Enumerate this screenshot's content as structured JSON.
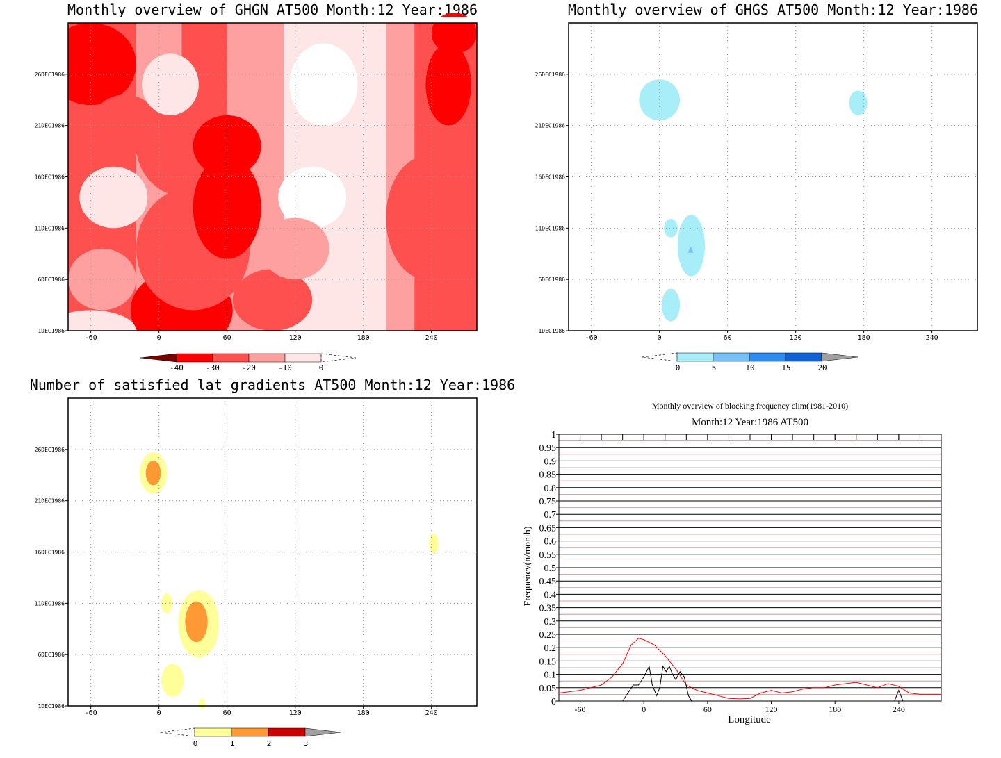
{
  "colors": {
    "ghgn": [
      "#7a0000",
      "#ff0000",
      "#ff5050",
      "#ffa0a0",
      "#ffe6e6"
    ],
    "ghgs": [
      "#a8eef8",
      "#78c0f4",
      "#2c8cf0",
      "#1060d8",
      "#a0a0a0"
    ],
    "grad": [
      "#ffff99",
      "#ff9933",
      "#cc0000",
      "#a0a0a0"
    ],
    "clim_line": "#ff0000",
    "obs_line": "#000000",
    "grid_dark": "#000000",
    "grid_light": "#cc8888"
  },
  "chart_data": [
    {
      "id": "ghgn",
      "type": "heatmap",
      "title": "Monthly overview of GHGN AT500 Month:12 Year:1986",
      "x_ticks": [
        "-60",
        "0",
        "60",
        "120",
        "180",
        "240"
      ],
      "y_ticks": [
        "1DEC1986",
        "6DEC1986",
        "11DEC1986",
        "16DEC1986",
        "21DEC1986",
        "26DEC1986"
      ],
      "xlim": [
        -80,
        280
      ],
      "ylim": [
        1,
        31
      ],
      "colorbar": [
        "-40",
        "-30",
        "-20",
        "-10",
        "0"
      ],
      "grid": true
    },
    {
      "id": "ghgs",
      "type": "heatmap",
      "title": "Monthly overview of GHGS AT500 Month:12 Year:1986",
      "x_ticks": [
        "-60",
        "0",
        "60",
        "120",
        "180",
        "240"
      ],
      "y_ticks": [
        "1DEC1986",
        "6DEC1986",
        "11DEC1986",
        "16DEC1986",
        "21DEC1986",
        "26DEC1986"
      ],
      "xlim": [
        -80,
        280
      ],
      "ylim": [
        1,
        31
      ],
      "colorbar": [
        "0",
        "5",
        "10",
        "15",
        "20"
      ],
      "grid": true,
      "blobs": [
        {
          "x": 0,
          "y": 23.5
        },
        {
          "x": 175,
          "y": 23.2
        },
        {
          "x": 10,
          "y": 11.0
        },
        {
          "x": 28,
          "y": 9.3
        },
        {
          "x": 10,
          "y": 3.5
        }
      ]
    },
    {
      "id": "grad",
      "type": "heatmap",
      "title": "Number of satisfied lat gradients AT500 Month:12 Year:1986",
      "x_ticks": [
        "-60",
        "0",
        "60",
        "120",
        "180",
        "240"
      ],
      "y_ticks": [
        "1DEC1986",
        "6DEC1986",
        "11DEC1986",
        "16DEC1986",
        "21DEC1986",
        "26DEC1986"
      ],
      "xlim": [
        -80,
        280
      ],
      "ylim": [
        1,
        31
      ],
      "colorbar": [
        "0",
        "1",
        "2",
        "3"
      ],
      "grid": true,
      "blobs": [
        {
          "x": -5,
          "y": 23.7,
          "level": 2
        },
        {
          "x": 35,
          "y": 9.0,
          "level": 2
        },
        {
          "x": 7,
          "y": 11.0,
          "level": 1
        },
        {
          "x": 12,
          "y": 3.5,
          "level": 1
        },
        {
          "x": 242,
          "y": 16.8,
          "level": 1
        },
        {
          "x": 38,
          "y": 1.2,
          "level": 1
        }
      ]
    },
    {
      "id": "freq",
      "type": "line",
      "title": "Monthly overview of blocking frequency clim(1981-2010)",
      "subtitle": "Month:12 Year:1986  AT500",
      "xlabel": "Longitude",
      "ylabel": "Frequency(n/month)",
      "xlim": [
        -80,
        280
      ],
      "ylim": [
        0,
        1
      ],
      "x_ticks": [
        "-60",
        "0",
        "60",
        "120",
        "180",
        "240"
      ],
      "y_ticks": [
        "0",
        "0.05",
        "0.1",
        "0.15",
        "0.2",
        "0.25",
        "0.3",
        "0.35",
        "0.4",
        "0.45",
        "0.5",
        "0.55",
        "0.6",
        "0.65",
        "0.7",
        "0.75",
        "0.8",
        "0.85",
        "0.9",
        "0.95",
        "1"
      ],
      "series": [
        {
          "x": [
            -80,
            -70,
            -60,
            -50,
            -40,
            -30,
            -20,
            -12,
            -5,
            0,
            10,
            20,
            30,
            40,
            50,
            60,
            70,
            80,
            90,
            100,
            110,
            120,
            130,
            140,
            150,
            160,
            170,
            180,
            190,
            200,
            210,
            220,
            230,
            240,
            250,
            260,
            270,
            280
          ],
          "values": [
            0.03,
            0.035,
            0.04,
            0.05,
            0.06,
            0.09,
            0.14,
            0.21,
            0.235,
            0.23,
            0.21,
            0.17,
            0.12,
            0.06,
            0.04,
            0.03,
            0.02,
            0.01,
            0.008,
            0.01,
            0.03,
            0.04,
            0.03,
            0.035,
            0.045,
            0.05,
            0.05,
            0.06,
            0.065,
            0.07,
            0.06,
            0.05,
            0.065,
            0.055,
            0.03,
            0.025,
            0.025,
            0.025
          ]
        },
        {
          "x": [
            -20,
            -15,
            -10,
            -5,
            0,
            5,
            8,
            12,
            15,
            18,
            21,
            24,
            27,
            30,
            34,
            38,
            42,
            45
          ],
          "values": [
            0,
            0.03,
            0.06,
            0.06,
            0.09,
            0.13,
            0.06,
            0.02,
            0.05,
            0.13,
            0.11,
            0.13,
            0.1,
            0.08,
            0.11,
            0.09,
            0.02,
            0
          ]
        },
        {
          "x": [
            236,
            238,
            240,
            242,
            244
          ],
          "values": [
            0,
            0.02,
            0.04,
            0.02,
            0
          ]
        }
      ],
      "grid": true
    }
  ]
}
